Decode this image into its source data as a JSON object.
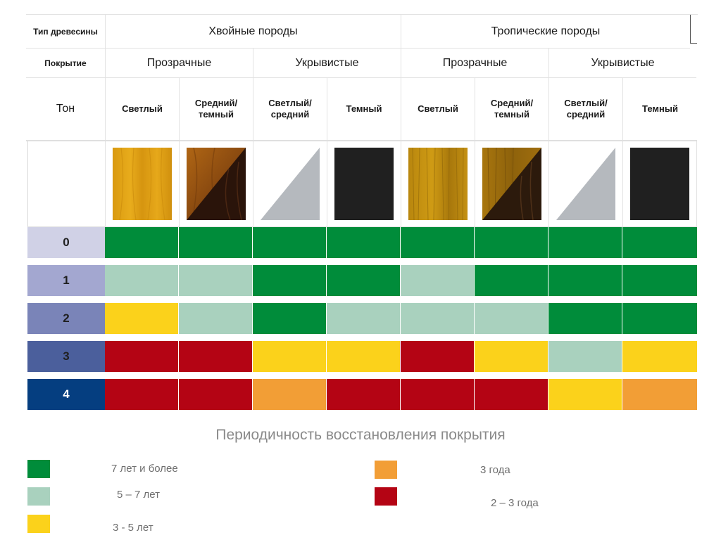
{
  "colors": {
    "green": "#008c3a",
    "light_green": "#a9d1be",
    "yellow": "#fbd21b",
    "orange": "#f29e36",
    "red": "#b40414"
  },
  "header": {
    "wood_type_label": "Тип древесины",
    "coating_label": "Покрытие",
    "tone_label": "Тон",
    "groups": [
      {
        "name": "Хвойные породы",
        "coatings": [
          {
            "name": "Прозрачные",
            "tones": [
              "Светлый",
              "Средний/ темный"
            ]
          },
          {
            "name": "Укрывистые",
            "tones": [
              "Светлый/ средний",
              "Темный"
            ]
          }
        ]
      },
      {
        "name": "Тропические породы",
        "coatings": [
          {
            "name": "Прозрачные",
            "tones": [
              "Светлый",
              "Средний/ темный"
            ]
          },
          {
            "name": "Укрывистые",
            "tones": [
              "Светлый/ средний",
              "Темный"
            ]
          }
        ]
      }
    ]
  },
  "swatches": [
    "wood-light-conifer-icon",
    "wood-medium-dark-conifer-icon",
    "grey-triangle-icon",
    "black-square-icon",
    "wood-light-tropical-icon",
    "wood-medium-dark-tropical-icon",
    "grey-triangle-icon",
    "black-square-icon"
  ],
  "rows": [
    {
      "level": "0",
      "bg": "#d0d1e6",
      "fg": "#1f1f1f",
      "cells": [
        "green",
        "green",
        "green",
        "green",
        "green",
        "green",
        "green",
        "green"
      ]
    },
    {
      "level": "1",
      "bg": "#a3a7d0",
      "fg": "#1f1f1f",
      "cells": [
        "light_green",
        "light_green",
        "green",
        "green",
        "light_green",
        "green",
        "green",
        "green"
      ]
    },
    {
      "level": "2",
      "bg": "#7a84b8",
      "fg": "#1f1f1f",
      "cells": [
        "yellow",
        "light_green",
        "green",
        "light_green",
        "light_green",
        "light_green",
        "green",
        "green"
      ]
    },
    {
      "level": "3",
      "bg": "#4b5f9c",
      "fg": "#1f1f1f",
      "cells": [
        "red",
        "red",
        "yellow",
        "yellow",
        "red",
        "yellow",
        "light_green",
        "yellow"
      ]
    },
    {
      "level": "4",
      "bg": "#053e80",
      "fg": "#ffffff",
      "cells": [
        "red",
        "red",
        "orange",
        "red",
        "red",
        "red",
        "yellow",
        "orange"
      ]
    }
  ],
  "legend": {
    "title": "Периодичность восстановления покрытия",
    "items": [
      {
        "color": "green",
        "label": "7 лет и более"
      },
      {
        "color": "light_green",
        "label": "5 – 7 лет"
      },
      {
        "color": "yellow",
        "label": "3 - 5 лет"
      },
      {
        "color": "orange",
        "label": "3 года"
      },
      {
        "color": "red",
        "label": "2 – 3 года"
      }
    ]
  }
}
